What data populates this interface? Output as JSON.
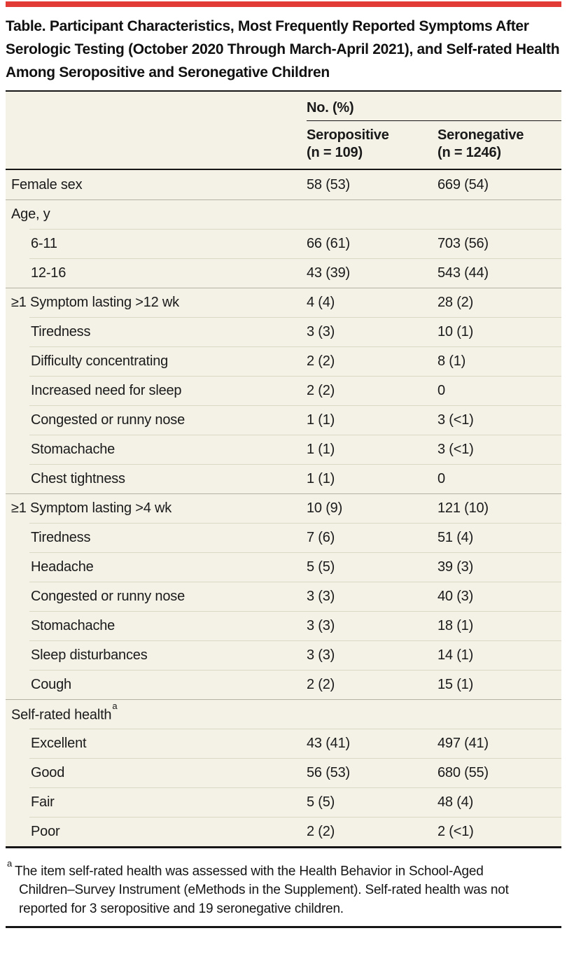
{
  "accent": {
    "red_bar": "#e23b35",
    "table_background": "#f4f2e7",
    "rule_color": "#161616"
  },
  "title": "Table. Participant Characteristics, Most Frequently Reported Symptoms After Serologic Testing (October 2020 Through March-April 2021), and Self-rated Health Among Seropositive and Seronegative Children",
  "table": {
    "group_header": "No. (%)",
    "columns": [
      {
        "name": "Seropositive",
        "n": "(n = 109)"
      },
      {
        "name": "Seronegative",
        "n": "(n = 1246)"
      }
    ],
    "rows": [
      {
        "label": "Female sex",
        "seropositive": "58 (53)",
        "seronegative": "669 (54)"
      },
      {
        "label": "Age, y",
        "seropositive": "",
        "seronegative": ""
      },
      {
        "label": "6-11",
        "seropositive": "66 (61)",
        "seronegative": "703 (56)"
      },
      {
        "label": "12-16",
        "seropositive": "43 (39)",
        "seronegative": "543 (44)"
      },
      {
        "label": "≥1 Symptom lasting >12 wk",
        "seropositive": "4 (4)",
        "seronegative": "28 (2)"
      },
      {
        "label": "Tiredness",
        "seropositive": "3 (3)",
        "seronegative": "10 (1)"
      },
      {
        "label": "Difficulty concentrating",
        "seropositive": "2 (2)",
        "seronegative": "8 (1)"
      },
      {
        "label": "Increased need for sleep",
        "seropositive": "2 (2)",
        "seronegative": "0"
      },
      {
        "label": "Congested or runny nose",
        "seropositive": "1 (1)",
        "seronegative": "3 (<1)"
      },
      {
        "label": "Stomachache",
        "seropositive": "1 (1)",
        "seronegative": "3 (<1)"
      },
      {
        "label": "Chest tightness",
        "seropositive": "1 (1)",
        "seronegative": "0"
      },
      {
        "label": "≥1 Symptom lasting >4 wk",
        "seropositive": "10 (9)",
        "seronegative": "121 (10)"
      },
      {
        "label": "Tiredness",
        "seropositive": "7 (6)",
        "seronegative": "51 (4)"
      },
      {
        "label": "Headache",
        "seropositive": "5 (5)",
        "seronegative": "39 (3)"
      },
      {
        "label": "Congested or runny nose",
        "seropositive": "3 (3)",
        "seronegative": "40 (3)"
      },
      {
        "label": "Stomachache",
        "seropositive": "3 (3)",
        "seronegative": "18 (1)"
      },
      {
        "label": "Sleep disturbances",
        "seropositive": "3 (3)",
        "seronegative": "14 (1)"
      },
      {
        "label": "Cough",
        "seropositive": "2 (2)",
        "seronegative": "15 (1)"
      },
      {
        "label": "Self-rated health",
        "sup": "a",
        "seropositive": "",
        "seronegative": ""
      },
      {
        "label": "Excellent",
        "seropositive": "43 (41)",
        "seronegative": "497 (41)"
      },
      {
        "label": "Good",
        "seropositive": "56 (53)",
        "seronegative": "680 (55)"
      },
      {
        "label": "Fair",
        "seropositive": "5 (5)",
        "seronegative": "48 (4)"
      },
      {
        "label": "Poor",
        "seropositive": "2 (2)",
        "seronegative": "2 (<1)"
      }
    ]
  },
  "footnote": {
    "marker": "a",
    "text": "The item self-rated health was assessed with the Health Behavior in School-Aged Children–Survey Instrument (eMethods in the Supplement). Self-rated health was not reported for 3 seropositive and 19 seronegative children."
  }
}
